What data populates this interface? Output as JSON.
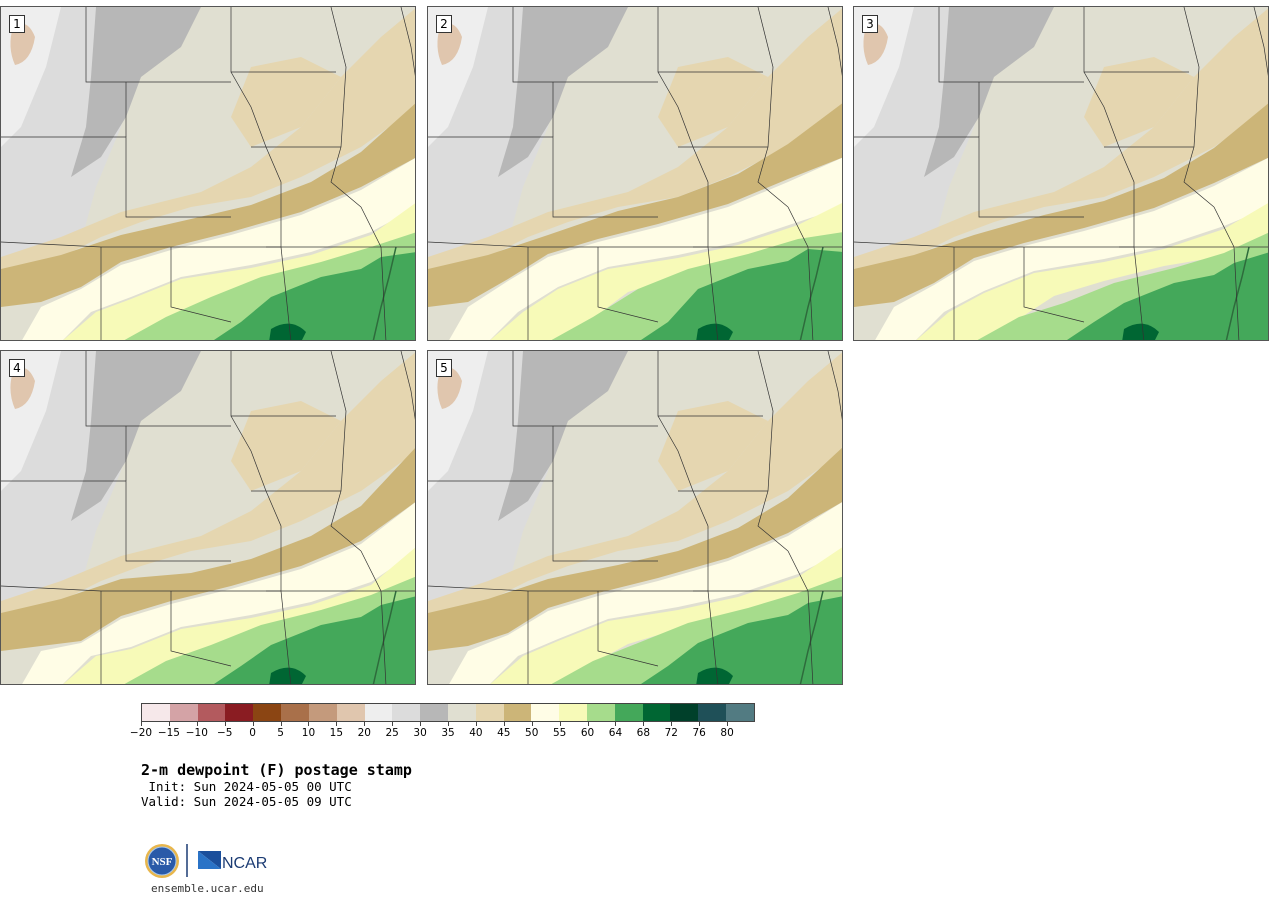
{
  "panels": [
    {
      "label": "1"
    },
    {
      "label": "2"
    },
    {
      "label": "3"
    },
    {
      "label": "4"
    },
    {
      "label": "5"
    }
  ],
  "colorbar": {
    "colors": [
      "#f6e8ea",
      "#d4a3a6",
      "#b35a5e",
      "#8a1c22",
      "#8b4513",
      "#a9704a",
      "#c49a7c",
      "#e0c6ae",
      "#eeeeee",
      "#dcdcdc",
      "#b7b7b7",
      "#e0dfd1",
      "#e5d6b0",
      "#ccb578",
      "#fffde6",
      "#f7fab8",
      "#a6dc8c",
      "#44a85a",
      "#006633",
      "#00402a",
      "#1f5058",
      "#527b82"
    ],
    "ticks": [
      "−20",
      "−15",
      "−10",
      "−5",
      "0",
      "5",
      "10",
      "15",
      "20",
      "25",
      "30",
      "35",
      "40",
      "45",
      "50",
      "55",
      "60",
      "64",
      "68",
      "72",
      "76",
      "80"
    ]
  },
  "title": "2-m dewpoint (F) postage stamp",
  "init": " Init: Sun 2024-05-05 00 UTC",
  "valid": "Valid: Sun 2024-05-05 09 UTC",
  "logos": {
    "nsf": "NSF",
    "ncar": "NCAR"
  },
  "site": "ensemble.ucar.edu"
}
